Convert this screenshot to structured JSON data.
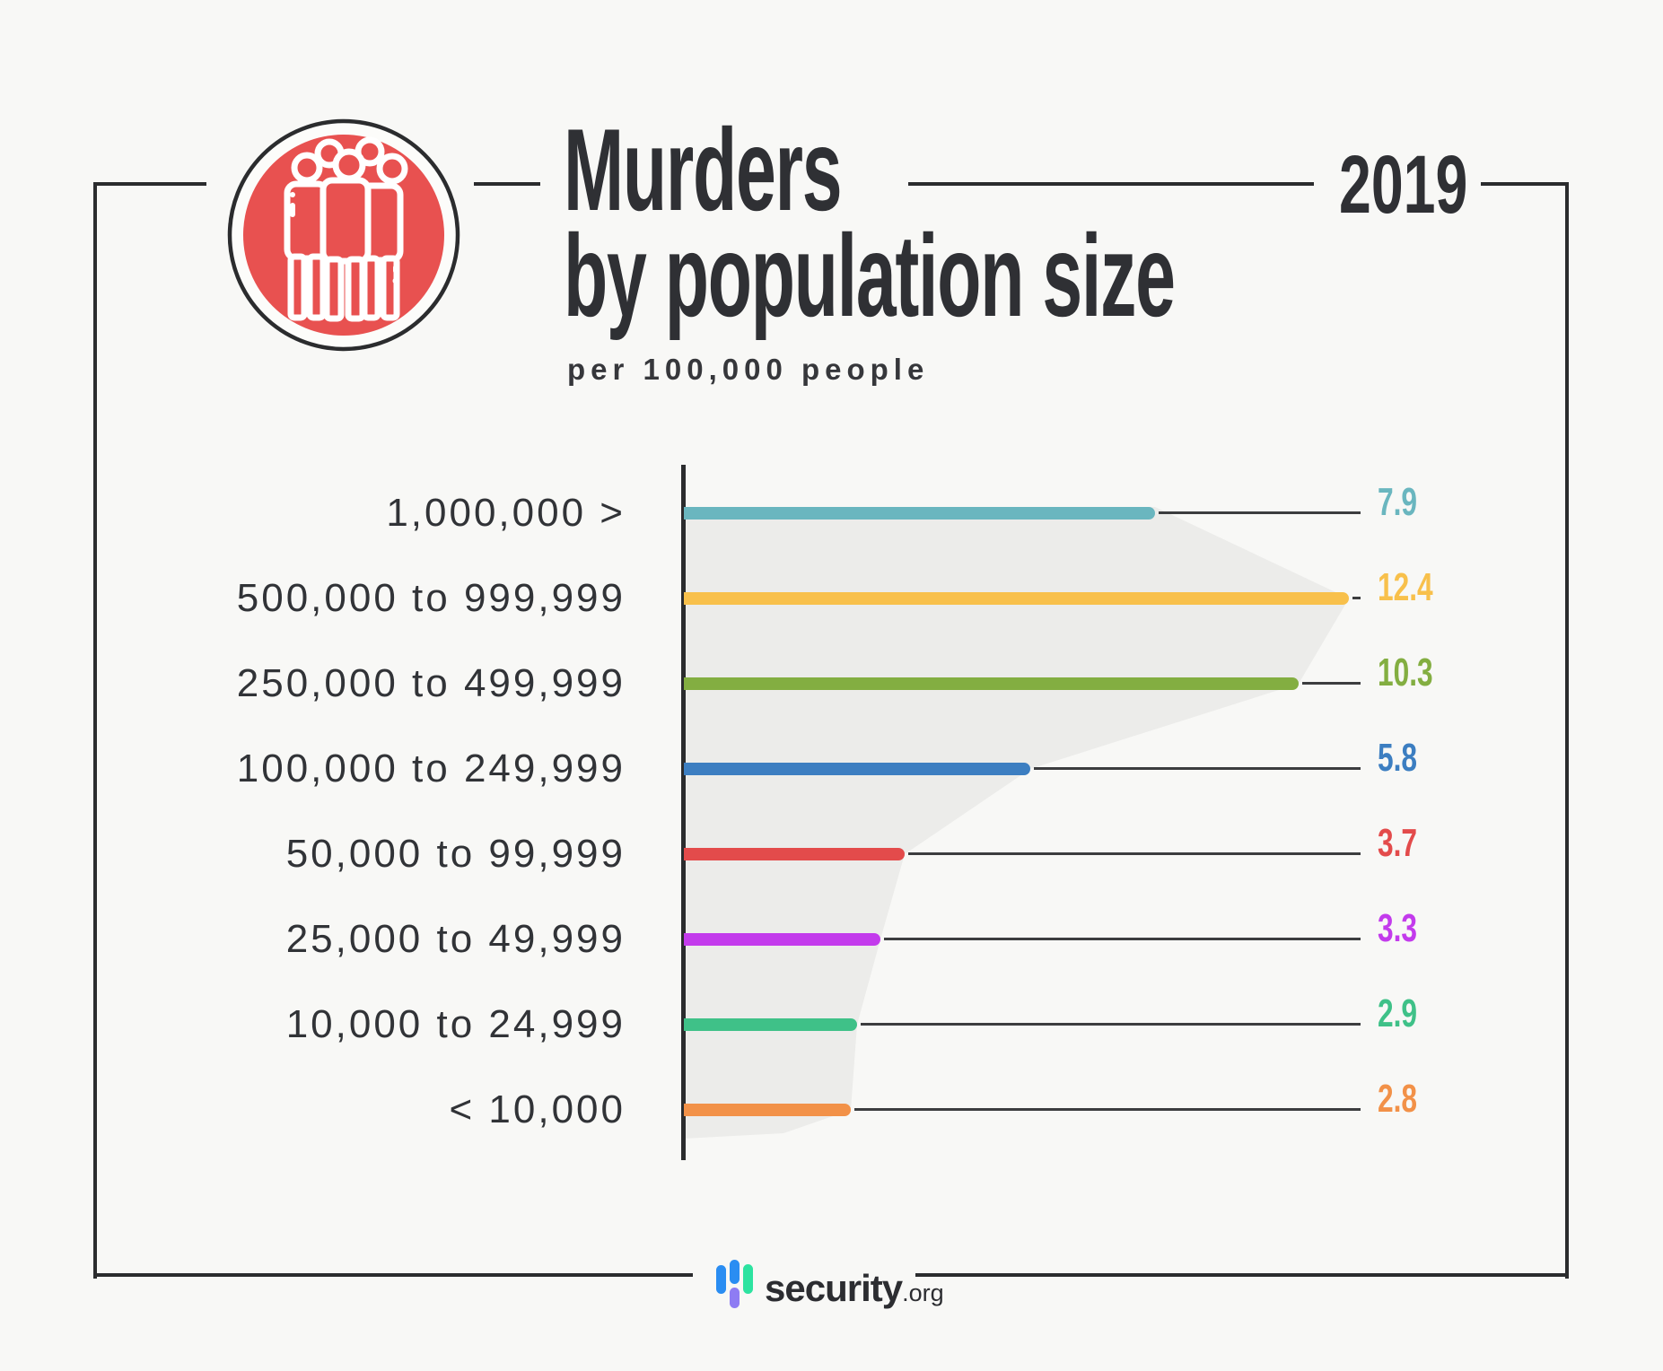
{
  "page": {
    "background": "#f8f8f6",
    "frame_color": "#2b2c2e"
  },
  "header": {
    "icon": "people-icon",
    "icon_circle_color": "#e85150",
    "title_line1": "Murders",
    "title_line2": "by population size",
    "subtitle": "per 100,000 people",
    "year": "2019",
    "title_color": "#2f3034"
  },
  "chart_data": {
    "type": "bar",
    "orientation": "horizontal",
    "title": "Murders by population size",
    "subtitle": "per 100,000 people",
    "year": "2019",
    "categories": [
      "1,000,000 >",
      "500,000 to 999,999",
      "250,000 to 499,999",
      "100,000 to 249,999",
      "50,000 to 99,999",
      "25,000 to 49,999",
      "10,000 to 24,999",
      "< 10,000"
    ],
    "values": [
      7.9,
      12.4,
      10.3,
      5.8,
      3.7,
      3.3,
      2.9,
      2.8
    ],
    "value_labels": [
      "7.9",
      "12.4",
      "10.3",
      "5.8",
      "3.7",
      "3.3",
      "2.9",
      "2.8"
    ],
    "bar_colors": [
      "#6ab6bf",
      "#f8c04b",
      "#83ae41",
      "#3c7ec1",
      "#e34b4b",
      "#c33bec",
      "#3fc188",
      "#f29148"
    ],
    "xlim": [
      0,
      12.4
    ],
    "grid": false,
    "legend": false,
    "funnel_color": "#ececea",
    "axis_color": "#2b2c2e",
    "leader_color": "#3c3d3f"
  },
  "footer": {
    "brand": "security",
    "tld": ".org",
    "brand_color": "#2c2d31",
    "logo_colors": {
      "blue": "#2a8df2",
      "purple": "#8e7cf3",
      "green": "#2de3a0"
    }
  }
}
